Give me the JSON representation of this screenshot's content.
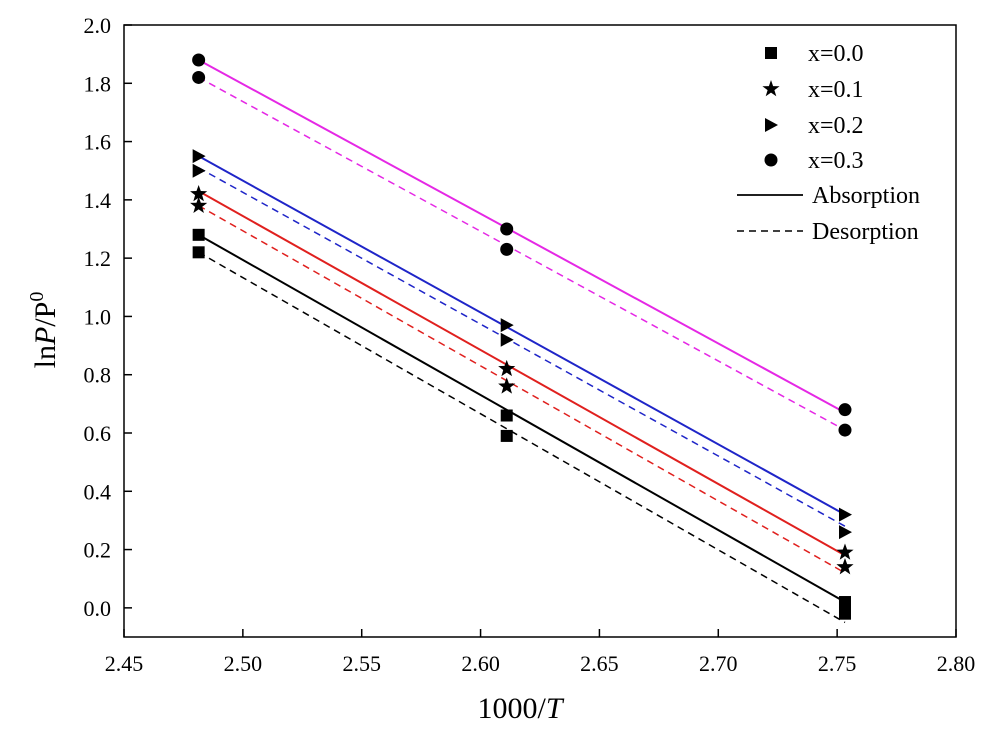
{
  "chart_data": {
    "type": "scatter",
    "title": "",
    "xlabel": {
      "prefix": "1000/",
      "italic": "T"
    },
    "ylabel": {
      "prefix": "ln",
      "italic": "P",
      "suffix": "/P",
      "superscript": "0"
    },
    "xlim": [
      2.45,
      2.8
    ],
    "ylim": [
      -0.1,
      2.0
    ],
    "xticks": [
      "2.45",
      "2.50",
      "2.55",
      "2.60",
      "2.65",
      "2.70",
      "2.75",
      "2.80"
    ],
    "yticks": [
      "0.0",
      "0.2",
      "0.4",
      "0.6",
      "0.8",
      "1.0",
      "1.2",
      "1.4",
      "1.6",
      "1.8",
      "2.0"
    ],
    "grid": false,
    "legend_position": "top-right",
    "series": [
      {
        "name": "x=0.0",
        "marker": "square",
        "color": "#000000",
        "x": [
          2.4814,
          2.611,
          2.7533
        ],
        "absorption": [
          1.28,
          0.66,
          0.02
        ],
        "desorption": [
          1.22,
          0.59,
          -0.02
        ],
        "absorption_fit": [
          1.28,
          0.02
        ],
        "desorption_fit": [
          1.22,
          -0.05
        ]
      },
      {
        "name": "x=0.1",
        "marker": "star",
        "color": "#e0201e",
        "x": [
          2.4814,
          2.611,
          2.7533
        ],
        "absorption": [
          1.42,
          0.82,
          0.19
        ],
        "desorption": [
          1.38,
          0.76,
          0.14
        ],
        "absorption_fit": [
          1.43,
          0.18
        ],
        "desorption_fit": [
          1.38,
          0.12
        ]
      },
      {
        "name": "x=0.2",
        "marker": "triangle-right",
        "color": "#1f25c8",
        "x": [
          2.4814,
          2.611,
          2.7533
        ],
        "absorption": [
          1.55,
          0.97,
          0.32
        ],
        "desorption": [
          1.5,
          0.92,
          0.26
        ],
        "absorption_fit": [
          1.55,
          0.32
        ],
        "desorption_fit": [
          1.51,
          0.28
        ]
      },
      {
        "name": "x=0.3",
        "marker": "circle",
        "color": "#e528e5",
        "x": [
          2.4814,
          2.611,
          2.7533
        ],
        "absorption": [
          1.88,
          1.3,
          0.68
        ],
        "desorption": [
          1.82,
          1.23,
          0.61
        ],
        "absorption_fit": [
          1.88,
          0.67
        ],
        "desorption_fit": [
          1.82,
          0.61
        ]
      }
    ],
    "legend": {
      "entries": [
        "x=0.0",
        "x=0.1",
        "x=0.2",
        "x=0.3"
      ],
      "absorption_label": "Absorption",
      "desorption_label": "Desorption"
    }
  }
}
